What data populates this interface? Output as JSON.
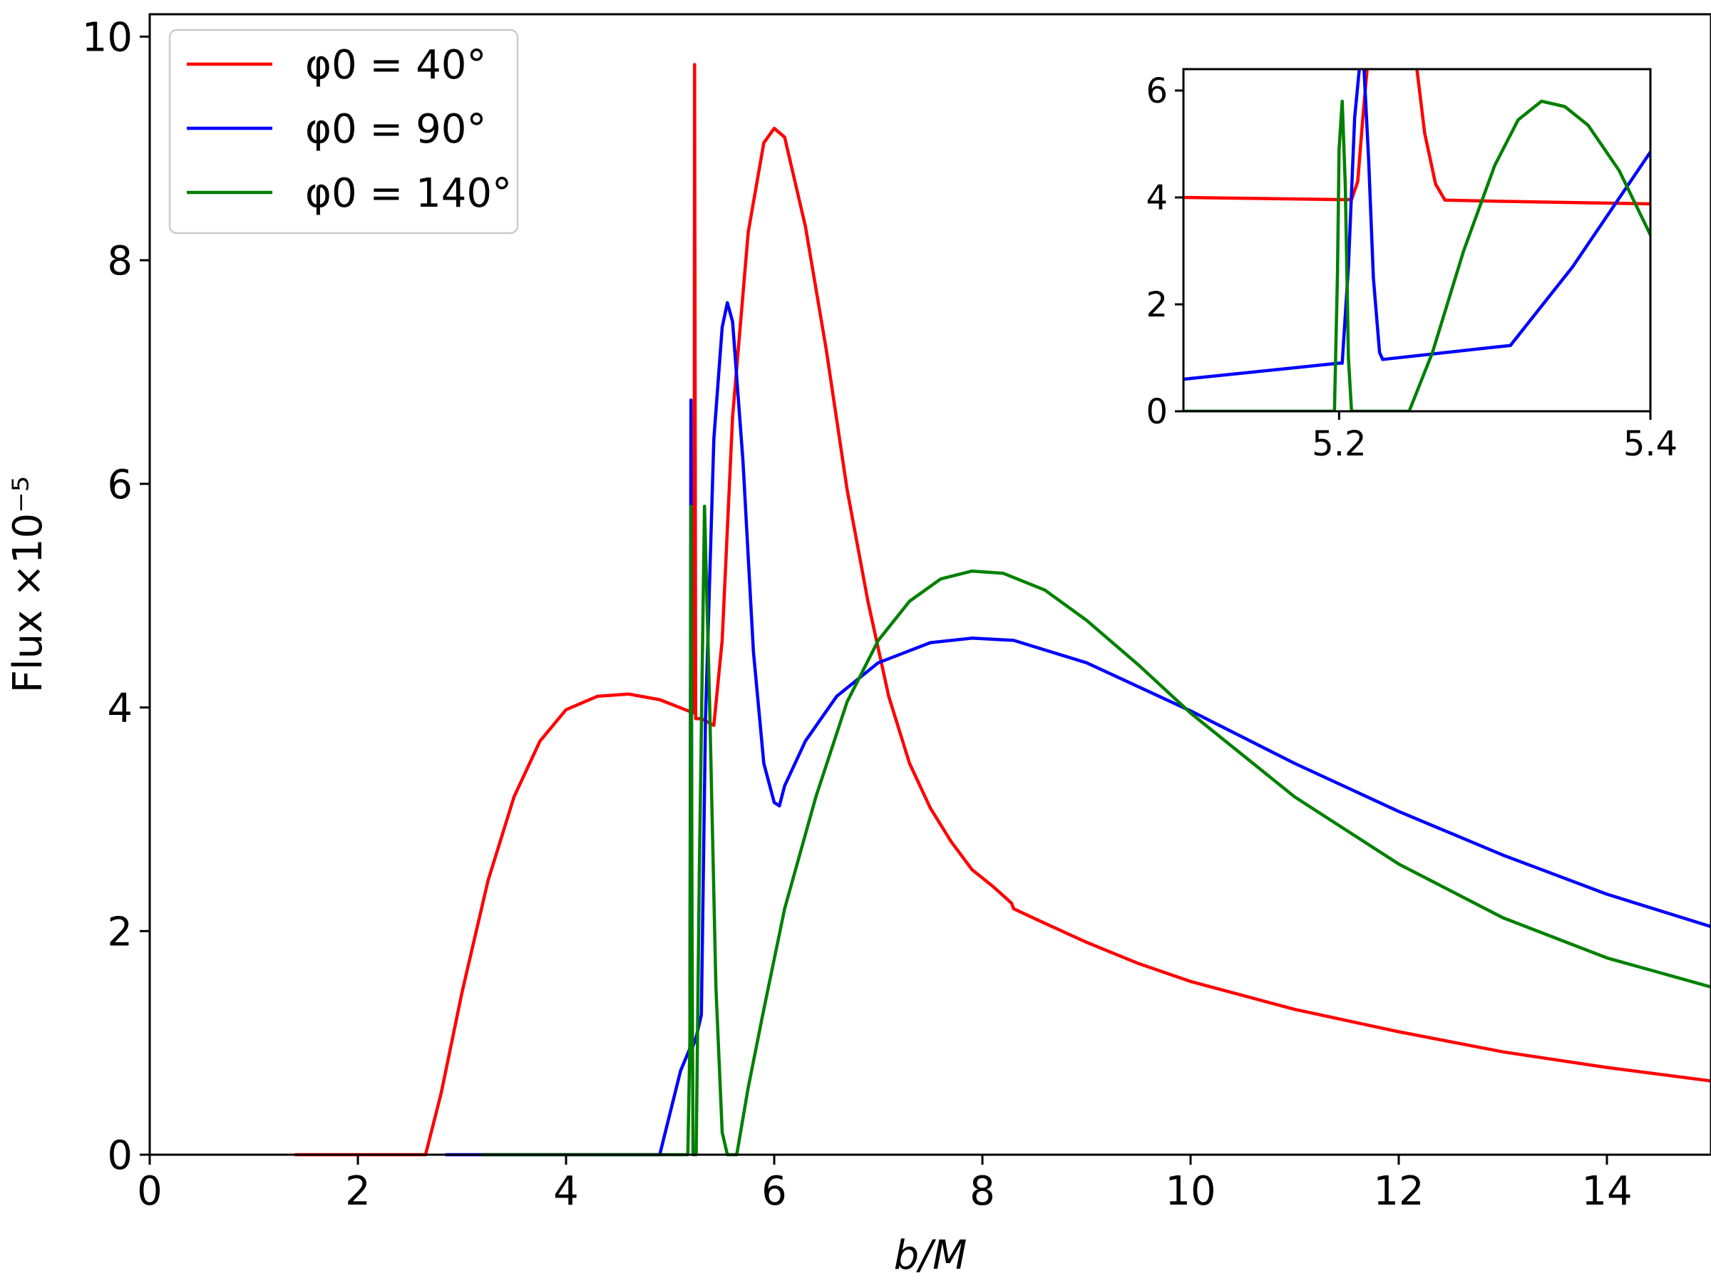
{
  "chart_data": {
    "type": "line",
    "xlabel": "b/M",
    "ylabel": "Flux ×10⁻⁵",
    "xlim": [
      0,
      15
    ],
    "ylim": [
      0,
      10.2
    ],
    "xticks": [
      "0",
      "2",
      "4",
      "6",
      "8",
      "10",
      "12",
      "14"
    ],
    "yticks": [
      "0",
      "2",
      "4",
      "6",
      "8",
      "10"
    ],
    "legend_position": "top-left",
    "grid": false,
    "series": [
      {
        "name": "φ0 = 40°",
        "color": "#ff0000",
        "points": [
          [
            1.4,
            0
          ],
          [
            2.65,
            0
          ],
          [
            2.8,
            0.55
          ],
          [
            3.0,
            1.45
          ],
          [
            3.25,
            2.45
          ],
          [
            3.5,
            3.2
          ],
          [
            3.75,
            3.7
          ],
          [
            4.0,
            3.98
          ],
          [
            4.3,
            4.1
          ],
          [
            4.6,
            4.12
          ],
          [
            4.9,
            4.07
          ],
          [
            5.2,
            3.96
          ],
          [
            5.23,
            3.95
          ],
          [
            5.235,
            9.75
          ],
          [
            5.245,
            3.9
          ],
          [
            5.3,
            3.9
          ],
          [
            5.42,
            3.84
          ],
          [
            5.5,
            4.6
          ],
          [
            5.6,
            6.6
          ],
          [
            5.75,
            8.25
          ],
          [
            5.9,
            9.05
          ],
          [
            6.0,
            9.18
          ],
          [
            6.1,
            9.1
          ],
          [
            6.3,
            8.3
          ],
          [
            6.5,
            7.2
          ],
          [
            6.7,
            5.95
          ],
          [
            6.9,
            4.95
          ],
          [
            7.1,
            4.1
          ],
          [
            7.3,
            3.5
          ],
          [
            7.5,
            3.1
          ],
          [
            7.7,
            2.8
          ],
          [
            7.9,
            2.55
          ],
          [
            8.1,
            2.4
          ],
          [
            8.28,
            2.25
          ],
          [
            8.3,
            2.2
          ],
          [
            8.6,
            2.07
          ],
          [
            9.0,
            1.9
          ],
          [
            9.5,
            1.71
          ],
          [
            10.0,
            1.55
          ],
          [
            11.0,
            1.3
          ],
          [
            12.0,
            1.1
          ],
          [
            13.0,
            0.92
          ],
          [
            14.0,
            0.78
          ],
          [
            15.0,
            0.66
          ]
        ]
      },
      {
        "name": "φ0 = 90°",
        "color": "#0000ff",
        "points": [
          [
            2.85,
            0
          ],
          [
            4.9,
            0
          ],
          [
            5.02,
            0.45
          ],
          [
            5.1,
            0.75
          ],
          [
            5.19,
            0.95
          ],
          [
            5.2,
            6.75
          ],
          [
            5.21,
            0.95
          ],
          [
            5.25,
            1.05
          ],
          [
            5.3,
            1.25
          ],
          [
            5.34,
            3.9
          ],
          [
            5.42,
            6.4
          ],
          [
            5.5,
            7.4
          ],
          [
            5.55,
            7.62
          ],
          [
            5.6,
            7.45
          ],
          [
            5.7,
            6.2
          ],
          [
            5.8,
            4.5
          ],
          [
            5.9,
            3.5
          ],
          [
            6.0,
            3.15
          ],
          [
            6.05,
            3.12
          ],
          [
            6.1,
            3.3
          ],
          [
            6.3,
            3.7
          ],
          [
            6.6,
            4.1
          ],
          [
            7.0,
            4.4
          ],
          [
            7.5,
            4.58
          ],
          [
            7.9,
            4.62
          ],
          [
            8.3,
            4.6
          ],
          [
            9.0,
            4.4
          ],
          [
            10.0,
            3.97
          ],
          [
            11.0,
            3.5
          ],
          [
            12.0,
            3.07
          ],
          [
            13.0,
            2.68
          ],
          [
            14.0,
            2.33
          ],
          [
            15.0,
            2.04
          ]
        ]
      },
      {
        "name": "φ0 = 140°",
        "color": "#008000",
        "points": [
          [
            3.2,
            0
          ],
          [
            5.17,
            0
          ],
          [
            5.19,
            1.0
          ],
          [
            5.2,
            5.8
          ],
          [
            5.21,
            2.0
          ],
          [
            5.22,
            0
          ],
          [
            5.25,
            0
          ],
          [
            5.28,
            2.5
          ],
          [
            5.33,
            5.8
          ],
          [
            5.38,
            4.0
          ],
          [
            5.44,
            1.5
          ],
          [
            5.5,
            0.2
          ],
          [
            5.55,
            0
          ],
          [
            5.64,
            0
          ],
          [
            5.75,
            0.6
          ],
          [
            5.9,
            1.3
          ],
          [
            6.1,
            2.2
          ],
          [
            6.4,
            3.2
          ],
          [
            6.7,
            4.05
          ],
          [
            7.0,
            4.6
          ],
          [
            7.3,
            4.95
          ],
          [
            7.6,
            5.15
          ],
          [
            7.9,
            5.22
          ],
          [
            8.2,
            5.2
          ],
          [
            8.6,
            5.05
          ],
          [
            9.0,
            4.78
          ],
          [
            9.5,
            4.38
          ],
          [
            10.0,
            3.95
          ],
          [
            11.0,
            3.2
          ],
          [
            12.0,
            2.6
          ],
          [
            13.0,
            2.12
          ],
          [
            14.0,
            1.76
          ],
          [
            15.0,
            1.5
          ]
        ]
      }
    ],
    "inset": {
      "xlim": [
        5.1,
        5.4
      ],
      "ylim": [
        0,
        6.4
      ],
      "xticks": [
        "5.2",
        "5.4"
      ],
      "yticks": [
        "0",
        "2",
        "4",
        "6"
      ],
      "series": [
        {
          "name": "φ0 = 40°",
          "color": "#ff0000",
          "points": [
            [
              5.1,
              4.0
            ],
            [
              5.2,
              3.96
            ],
            [
              5.208,
              3.96
            ],
            [
              5.212,
              4.3
            ],
            [
              5.215,
              5.4
            ],
            [
              5.218,
              6.4
            ]
          ],
          "points2": [
            [
              5.25,
              6.4
            ],
            [
              5.255,
              5.2
            ],
            [
              5.262,
              4.25
            ],
            [
              5.268,
              3.95
            ],
            [
              5.3,
              3.93
            ],
            [
              5.4,
              3.88
            ]
          ]
        },
        {
          "name": "φ0 = 90°",
          "color": "#0000ff",
          "points": [
            [
              5.1,
              0.6
            ],
            [
              5.2,
              0.9
            ],
            [
              5.202,
              0.9
            ],
            [
              5.206,
              2.7
            ],
            [
              5.21,
              5.5
            ],
            [
              5.213,
              6.4
            ]
          ],
          "points2": [
            [
              5.216,
              6.4
            ],
            [
              5.219,
              4.7
            ],
            [
              5.222,
              2.5
            ],
            [
              5.226,
              1.1
            ],
            [
              5.228,
              0.97
            ],
            [
              5.3,
              1.2
            ],
            [
              5.31,
              1.23
            ],
            [
              5.35,
              2.7
            ],
            [
              5.4,
              4.85
            ]
          ]
        },
        {
          "name": "φ0 = 140°",
          "color": "#008000",
          "points": [
            [
              5.1,
              0
            ],
            [
              5.197,
              0
            ],
            [
              5.199,
              2.6
            ],
            [
              5.2,
              4.9
            ],
            [
              5.202,
              5.8
            ],
            [
              5.204,
              4.2
            ],
            [
              5.206,
              1.0
            ],
            [
              5.208,
              0
            ],
            [
              5.245,
              0
            ],
            [
              5.26,
              1.1
            ],
            [
              5.28,
              3.0
            ],
            [
              5.3,
              4.6
            ],
            [
              5.315,
              5.45
            ],
            [
              5.33,
              5.8
            ],
            [
              5.345,
              5.7
            ],
            [
              5.36,
              5.35
            ],
            [
              5.38,
              4.5
            ],
            [
              5.4,
              3.3
            ]
          ]
        }
      ]
    }
  }
}
